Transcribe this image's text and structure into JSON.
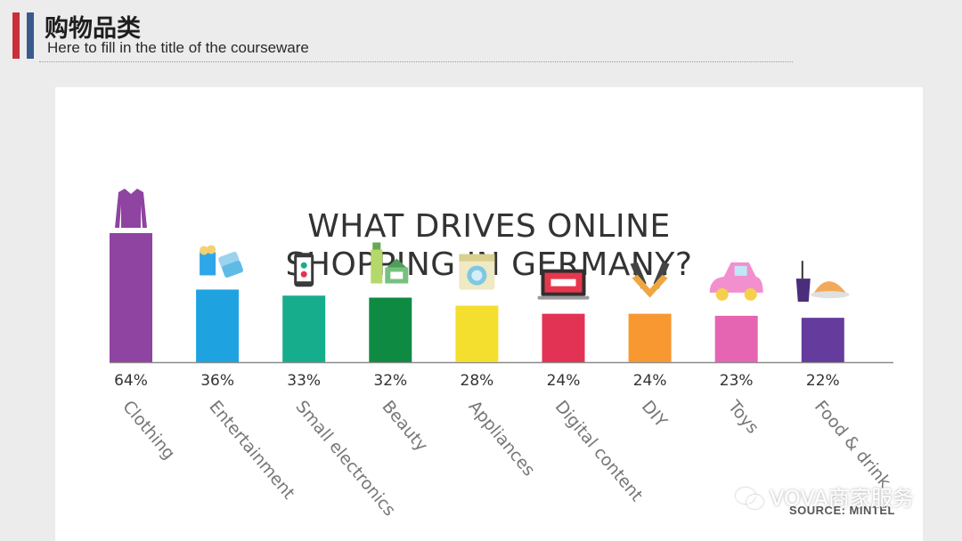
{
  "header": {
    "title": "购物品类",
    "subtitle": "Here to fill in the title of the courseware"
  },
  "chart_data": {
    "type": "bar",
    "title_line1": "WHAT DRIVES ONLINE",
    "title_line2": "SHOPPING IN GERMANY?",
    "categories": [
      "Clothing",
      "Entertainment",
      "Small electronics",
      "Beauty",
      "Appliances",
      "Digital content",
      "DIY",
      "Toys",
      "Food & drink"
    ],
    "values": [
      64,
      36,
      33,
      32,
      28,
      24,
      24,
      23,
      22
    ],
    "value_labels": [
      "64%",
      "36%",
      "33%",
      "32%",
      "28%",
      "24%",
      "24%",
      "23%",
      "22%"
    ],
    "colors": [
      "#8e44a0",
      "#1fa3e0",
      "#16ad8d",
      "#0e8a43",
      "#f4df2e",
      "#e23354",
      "#f79830",
      "#e565b2",
      "#653c9e"
    ],
    "icons": [
      "sweater-icon",
      "tickets-popcorn-icon",
      "phone-icon",
      "cosmetics-icon",
      "washing-machine-icon",
      "laptop-icon",
      "tools-icon",
      "toy-car-icon",
      "food-drink-icon"
    ],
    "ylim": [
      0,
      64
    ],
    "grid": false,
    "legend": "none"
  },
  "watermark": "VOVA商家服务",
  "source": "SOURCE: MINTEL"
}
